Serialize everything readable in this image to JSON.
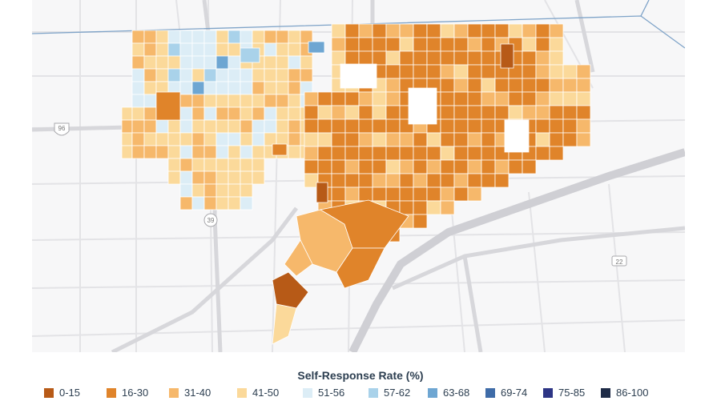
{
  "map": {
    "road_shields": [
      "96",
      "39",
      "22"
    ],
    "city_color_ramp_note": "",
    "tracts": [
      {
        "c": "#f3b976"
      },
      {
        "c": "#e8923a"
      },
      {
        "c": "#f7d6b0"
      },
      {
        "c": "#d9edf8"
      }
    ]
  },
  "legend": {
    "title": "Self-Response Rate (%)",
    "items": [
      {
        "label": "0-15",
        "color": "#b75a17"
      },
      {
        "label": "16-30",
        "color": "#e0842a"
      },
      {
        "label": "31-40",
        "color": "#f6b86b"
      },
      {
        "label": "41-50",
        "color": "#fbd99a"
      },
      {
        "label": "51-56",
        "color": "#dcedf6"
      },
      {
        "label": "57-62",
        "color": "#a9d2ea"
      },
      {
        "label": "63-68",
        "color": "#6ea6d2"
      },
      {
        "label": "69-74",
        "color": "#3f6ca8"
      },
      {
        "label": "75-85",
        "color": "#2d3585"
      },
      {
        "label": "86-100",
        "color": "#1e2b47"
      }
    ]
  }
}
